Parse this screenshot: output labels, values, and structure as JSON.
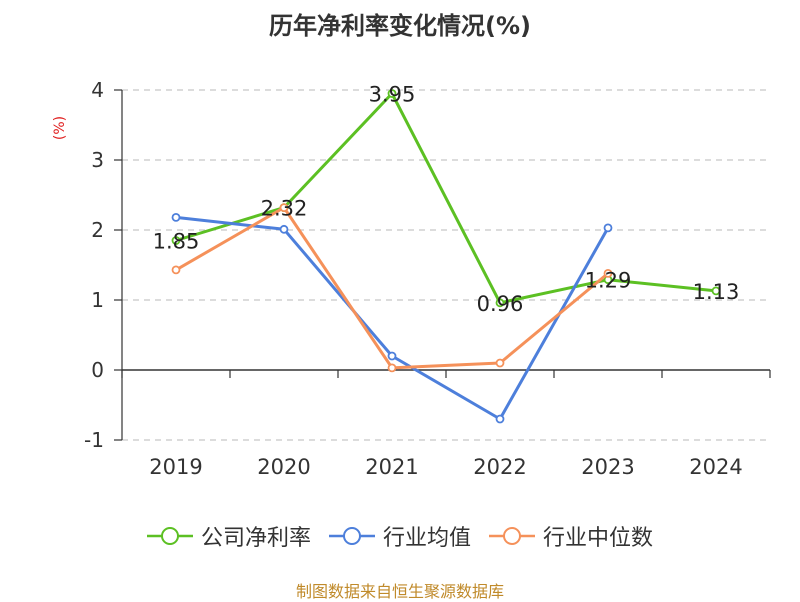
{
  "chart_data": {
    "type": "line",
    "title": "历年净利率变化情况(%)",
    "ylabel": "(%)",
    "xlabel": "",
    "categories": [
      "2019",
      "2020",
      "2021",
      "2022",
      "2023",
      "2024"
    ],
    "ylim": [
      -1,
      4
    ],
    "yticks": [
      "-1",
      "0",
      "1",
      "2",
      "3",
      "4"
    ],
    "grid": true,
    "legend_position": "bottom",
    "series": [
      {
        "name": "公司净利率",
        "color": "#5cc023",
        "values": [
          1.85,
          2.32,
          3.95,
          0.96,
          1.29,
          1.13
        ],
        "data_labels": [
          "1.85",
          "2.32",
          "3.95",
          "0.96",
          "1.29",
          "1.13"
        ]
      },
      {
        "name": "行业均值",
        "color": "#4d7fdb",
        "values": [
          2.18,
          2.01,
          0.2,
          -0.7,
          2.03,
          null
        ]
      },
      {
        "name": "行业中位数",
        "color": "#f5915a",
        "values": [
          1.43,
          2.32,
          0.03,
          0.1,
          1.38,
          null
        ]
      }
    ]
  },
  "source_note": "制图数据来自恒生聚源数据库",
  "ylabel_color": "#e02020"
}
